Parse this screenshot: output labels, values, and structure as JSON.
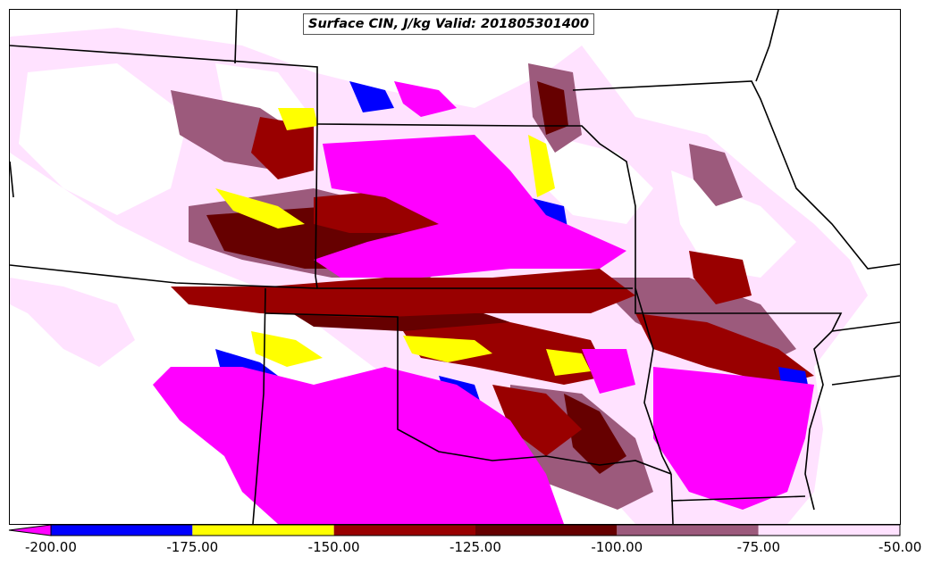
{
  "title": "Surface CIN, J/kg Valid: 201805301400",
  "colorbar": {
    "ticks": [
      "-200.00",
      "-175.00",
      "-150.00",
      "-125.00",
      "-100.00",
      "-75.00",
      "-50.00"
    ],
    "bins": [
      {
        "range": [
          -200,
          -175
        ],
        "color": "#0000ff"
      },
      {
        "range": [
          -175,
          -150
        ],
        "color": "#ffff00"
      },
      {
        "range": [
          -150,
          -125
        ],
        "color": "#990000"
      },
      {
        "range": [
          -125,
          -100
        ],
        "color": "#660000"
      },
      {
        "range": [
          -100,
          -75
        ],
        "color": "#9c5a7c"
      },
      {
        "range": [
          -75,
          -50
        ],
        "color": "#ffe2ff"
      }
    ],
    "under_color": "#ff00ff",
    "over_color": "#ffffff"
  },
  "colors": {
    "magenta": "#ff00ff",
    "blue": "#0000ff",
    "yellow": "#ffff00",
    "red": "#990000",
    "darkred": "#660000",
    "mauve": "#9c5a7c",
    "pink": "#ffe2ff",
    "boundary": "#000000"
  },
  "map": {
    "field": "Surface CIN",
    "units": "J/kg",
    "valid_time": "201805301400"
  }
}
